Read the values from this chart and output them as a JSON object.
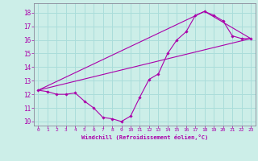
{
  "xlabel": "Windchill (Refroidissement éolien,°C)",
  "bg_color": "#cceee8",
  "grid_color": "#aaddda",
  "line_color": "#aa00aa",
  "xlim": [
    -0.5,
    23.5
  ],
  "ylim": [
    9.7,
    18.7
  ],
  "yticks": [
    10,
    11,
    12,
    13,
    14,
    15,
    16,
    17,
    18
  ],
  "xticks": [
    0,
    1,
    2,
    3,
    4,
    5,
    6,
    7,
    8,
    9,
    10,
    11,
    12,
    13,
    14,
    15,
    16,
    17,
    18,
    19,
    20,
    21,
    22,
    23
  ],
  "line1_x": [
    0,
    1,
    2,
    3,
    4,
    5,
    6,
    7,
    8,
    9,
    10,
    11,
    12,
    13,
    14,
    15,
    16,
    17,
    18,
    19,
    20,
    21,
    22,
    23
  ],
  "line1_y": [
    12.3,
    12.2,
    12.0,
    12.0,
    12.1,
    11.5,
    11.0,
    10.3,
    10.2,
    10.0,
    10.4,
    11.8,
    13.1,
    13.5,
    15.0,
    16.0,
    16.6,
    17.8,
    18.1,
    17.8,
    17.4,
    16.3,
    16.1,
    16.1
  ],
  "line2_x": [
    0,
    23
  ],
  "line2_y": [
    12.3,
    16.1
  ],
  "line3_x": [
    0,
    18,
    23
  ],
  "line3_y": [
    12.3,
    18.1,
    16.1
  ]
}
